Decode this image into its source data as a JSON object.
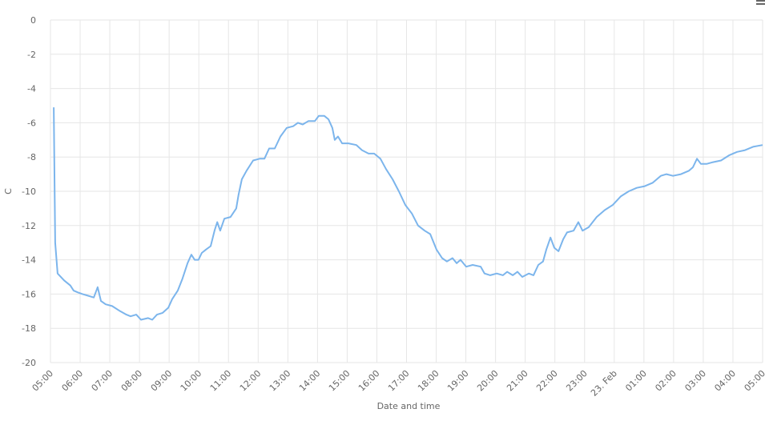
{
  "chart_data": {
    "type": "line",
    "y_label": "C",
    "x_label": "Date and time",
    "color": "#7cb5ec",
    "grid": true,
    "xlim": [
      5,
      29
    ],
    "ylim": [
      -20,
      0
    ],
    "xticks": [
      {
        "value": 5,
        "label": "05:00"
      },
      {
        "value": 6,
        "label": "06:00"
      },
      {
        "value": 7,
        "label": "07:00"
      },
      {
        "value": 8,
        "label": "08:00"
      },
      {
        "value": 9,
        "label": "09:00"
      },
      {
        "value": 10,
        "label": "10:00"
      },
      {
        "value": 11,
        "label": "11:00"
      },
      {
        "value": 12,
        "label": "12:00"
      },
      {
        "value": 13,
        "label": "13:00"
      },
      {
        "value": 14,
        "label": "14:00"
      },
      {
        "value": 15,
        "label": "15:00"
      },
      {
        "value": 16,
        "label": "16:00"
      },
      {
        "value": 17,
        "label": "17:00"
      },
      {
        "value": 18,
        "label": "18:00"
      },
      {
        "value": 19,
        "label": "19:00"
      },
      {
        "value": 20,
        "label": "20:00"
      },
      {
        "value": 21,
        "label": "21:00"
      },
      {
        "value": 22,
        "label": "22:00"
      },
      {
        "value": 23,
        "label": "23:00"
      },
      {
        "value": 24,
        "label": "23. Feb"
      },
      {
        "value": 25,
        "label": "01:00"
      },
      {
        "value": 26,
        "label": "02:00"
      },
      {
        "value": 27,
        "label": "03:00"
      },
      {
        "value": 28,
        "label": "04:00"
      },
      {
        "value": 29,
        "label": "05:00"
      }
    ],
    "yticks": [
      0,
      -2,
      -4,
      -6,
      -8,
      -10,
      -12,
      -14,
      -16,
      -18,
      -20
    ],
    "x": [
      5.11,
      5.16,
      5.24,
      5.46,
      5.67,
      5.78,
      5.92,
      6.08,
      6.27,
      6.46,
      6.59,
      6.7,
      6.86,
      7.08,
      7.35,
      7.56,
      7.7,
      7.89,
      8.05,
      8.29,
      8.43,
      8.59,
      8.78,
      8.97,
      9.1,
      9.29,
      9.45,
      9.62,
      9.75,
      9.86,
      9.99,
      10.1,
      10.24,
      10.4,
      10.53,
      10.62,
      10.72,
      10.86,
      11.07,
      11.26,
      11.34,
      11.45,
      11.61,
      11.83,
      12.05,
      12.21,
      12.37,
      12.56,
      12.75,
      12.96,
      13.18,
      13.34,
      13.5,
      13.69,
      13.91,
      14.04,
      14.23,
      14.37,
      14.5,
      14.58,
      14.69,
      14.83,
      15.04,
      15.31,
      15.5,
      15.72,
      15.91,
      16.12,
      16.31,
      16.53,
      16.74,
      16.96,
      17.18,
      17.39,
      17.61,
      17.8,
      18.01,
      18.2,
      18.36,
      18.55,
      18.69,
      18.82,
      19.01,
      19.23,
      19.5,
      19.63,
      19.82,
      20.04,
      20.25,
      20.39,
      20.58,
      20.74,
      20.9,
      21.12,
      21.28,
      21.44,
      21.6,
      21.71,
      21.85,
      21.98,
      22.12,
      22.28,
      22.41,
      22.63,
      22.79,
      22.93,
      23.14,
      23.41,
      23.68,
      23.95,
      24.22,
      24.49,
      24.76,
      25.03,
      25.3,
      25.57,
      25.76,
      25.98,
      26.25,
      26.52,
      26.65,
      26.79,
      26.92,
      27.11,
      27.33,
      27.6,
      27.87,
      28.14,
      28.41,
      28.68,
      29.0
    ],
    "values": [
      -5.1,
      -13,
      -14.8,
      -15.2,
      -15.5,
      -15.8,
      -15.9,
      -16.0,
      -16.1,
      -16.2,
      -15.6,
      -16.4,
      -16.6,
      -16.7,
      -17.0,
      -17.2,
      -17.3,
      -17.2,
      -17.5,
      -17.4,
      -17.5,
      -17.2,
      -17.1,
      -16.8,
      -16.3,
      -15.8,
      -15.1,
      -14.2,
      -13.7,
      -14.0,
      -14.0,
      -13.6,
      -13.4,
      -13.2,
      -12.3,
      -11.8,
      -12.3,
      -11.6,
      -11.5,
      -11.0,
      -10.2,
      -9.3,
      -8.8,
      -8.2,
      -8.1,
      -8.1,
      -7.5,
      -7.5,
      -6.8,
      -6.3,
      -6.2,
      -6.0,
      -6.1,
      -5.9,
      -5.9,
      -5.6,
      -5.6,
      -5.8,
      -6.3,
      -7.0,
      -6.8,
      -7.2,
      -7.2,
      -7.3,
      -7.6,
      -7.8,
      -7.8,
      -8.1,
      -8.7,
      -9.3,
      -10.0,
      -10.8,
      -11.3,
      -12.0,
      -12.3,
      -12.5,
      -13.4,
      -13.9,
      -14.1,
      -13.9,
      -14.2,
      -14.0,
      -14.4,
      -14.3,
      -14.4,
      -14.8,
      -14.9,
      -14.8,
      -14.9,
      -14.7,
      -14.9,
      -14.7,
      -15.0,
      -14.8,
      -14.9,
      -14.3,
      -14.1,
      -13.4,
      -12.7,
      -13.3,
      -13.5,
      -12.8,
      -12.4,
      -12.3,
      -11.8,
      -12.3,
      -12.1,
      -11.5,
      -11.1,
      -10.8,
      -10.3,
      -10.0,
      -9.8,
      -9.7,
      -9.5,
      -9.1,
      -9.0,
      -9.1,
      -9.0,
      -8.8,
      -8.6,
      -8.1,
      -8.4,
      -8.4,
      -8.3,
      -8.2,
      -7.9,
      -7.7,
      -7.6,
      -7.4,
      -7.3
    ]
  }
}
